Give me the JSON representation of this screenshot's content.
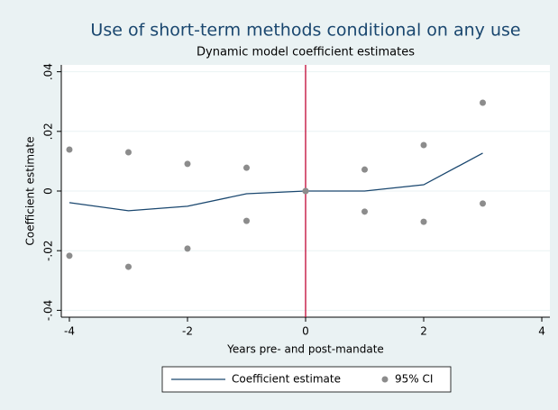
{
  "chart_data": {
    "type": "line",
    "title": "Use of short-term methods conditional on any use",
    "subtitle": "Dynamic model coefficient estimates",
    "x_label": "Years pre- and post-mandate",
    "y_label": "Coefficient estimate",
    "x": [
      -4,
      -3,
      -2,
      -1,
      0,
      1,
      2,
      3
    ],
    "series": [
      {
        "name": "Coefficient estimate",
        "color": "#1a476f",
        "values": [
          -0.0039,
          -0.0066,
          -0.0051,
          -0.0009,
          0,
          0,
          0.0021,
          0.0127
        ]
      }
    ],
    "ci": {
      "name": "95% CI",
      "color": "#8c8c8c",
      "upper": [
        0.0139,
        0.013,
        0.0091,
        0.0078,
        0,
        0.0072,
        0.0154,
        0.0296
      ],
      "lower": [
        -0.0217,
        -0.0254,
        -0.0193,
        -0.01,
        0,
        -0.0069,
        -0.0103,
        -0.0042
      ]
    },
    "reference_line": {
      "x": 0,
      "color": "#c10534"
    },
    "xlim": [
      -4.137,
      4.137
    ],
    "xticks": [
      -4,
      -2,
      0,
      2,
      4
    ],
    "ylim": [
      -0.0423,
      0.0423
    ],
    "yticks": [
      {
        "value": -0.04,
        "label": "-.04"
      },
      {
        "value": -0.02,
        "label": "-.02"
      },
      0,
      {
        "value": 0.02,
        "label": ".02"
      },
      {
        "value": 0.04,
        "label": ".04"
      }
    ],
    "grid": true
  }
}
